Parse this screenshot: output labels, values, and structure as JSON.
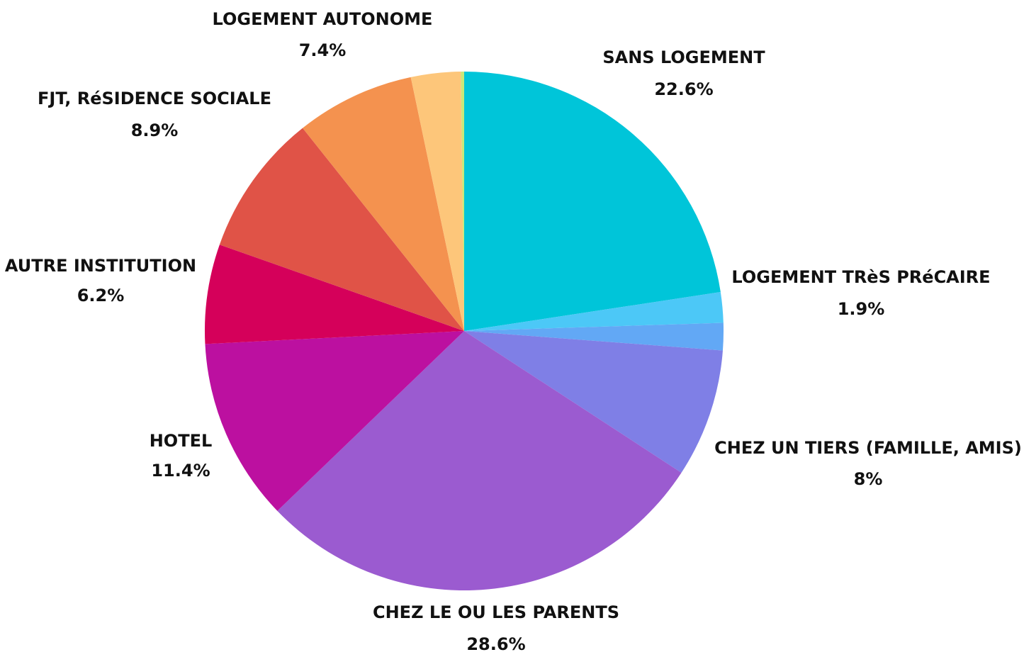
{
  "chart_data": {
    "type": "pie",
    "categories": [
      "SANS LOGEMENT",
      "LOGEMENT TRèS PRéCAIRE",
      null,
      "CHEZ UN TIERS (FAMILLE, AMIS)",
      "CHEZ LE OU LES PARENTS",
      "HOTEL",
      "AUTRE INSTITUTION",
      "FJT, RéSIDENCE SOCIALE",
      "LOGEMENT AUTONOME",
      null,
      null
    ],
    "values": [
      22.6,
      1.9,
      1.7,
      8,
      28.6,
      11.4,
      6.2,
      8.9,
      7.4,
      3.1,
      0.2
    ],
    "value_labels": [
      "22.6%",
      "1.9%",
      null,
      "8%",
      "28.6%",
      "11.4%",
      "6.2%",
      "8.9%",
      "7.4%",
      null,
      null
    ],
    "colors": [
      "#00c5d9",
      "#4cc8f7",
      "#62a8f5",
      "#7f7fe6",
      "#9b5bd0",
      "#bc10a0",
      "#d5005a",
      "#e05347",
      "#f4924f",
      "#fdc67a",
      "#c8e87a"
    ]
  }
}
